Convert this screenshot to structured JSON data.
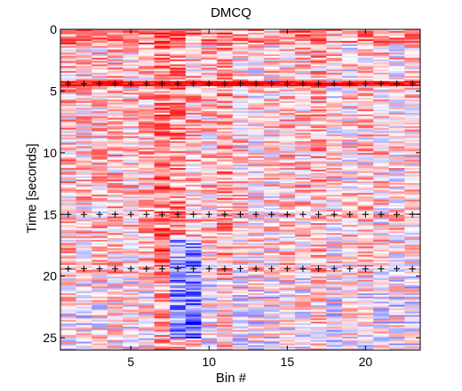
{
  "chart_data": {
    "type": "heatmap",
    "title": "DMCQ",
    "xlabel": "Bin #",
    "ylabel": "Time [seconds]",
    "x_ticks": [
      5,
      10,
      15,
      20
    ],
    "y_ticks": [
      0,
      5,
      10,
      15,
      20,
      25
    ],
    "xlim": [
      0.5,
      23.5
    ],
    "ylim": [
      0,
      26
    ],
    "y_reversed": true,
    "colormap": "blue-white-red (diverging)",
    "colors": {
      "negative": "#0000ff",
      "zero": "#ffffff",
      "positive": "#ff0000",
      "marker": "#000000"
    },
    "bins": 23,
    "frames": 192,
    "marker_symbol": "+",
    "marker_rows": [
      {
        "time": 4.4,
        "bins": [
          1,
          2,
          3,
          4,
          5,
          6,
          7,
          8,
          9,
          10,
          11,
          12,
          13,
          14,
          15,
          16,
          17,
          18,
          19,
          20,
          21,
          22,
          23
        ]
      },
      {
        "time": 15.0,
        "bins": [
          1,
          2,
          3,
          4,
          5,
          6,
          7,
          8,
          9,
          10,
          11,
          12,
          13,
          14,
          15,
          16,
          17,
          18,
          19,
          20,
          21,
          22,
          23
        ]
      },
      {
        "time": 19.4,
        "bins": [
          1,
          2,
          3,
          4,
          5,
          6,
          7,
          8,
          9,
          10,
          11,
          12,
          13,
          14,
          15,
          16,
          17,
          18,
          19,
          20,
          21,
          22,
          23
        ]
      }
    ]
  }
}
